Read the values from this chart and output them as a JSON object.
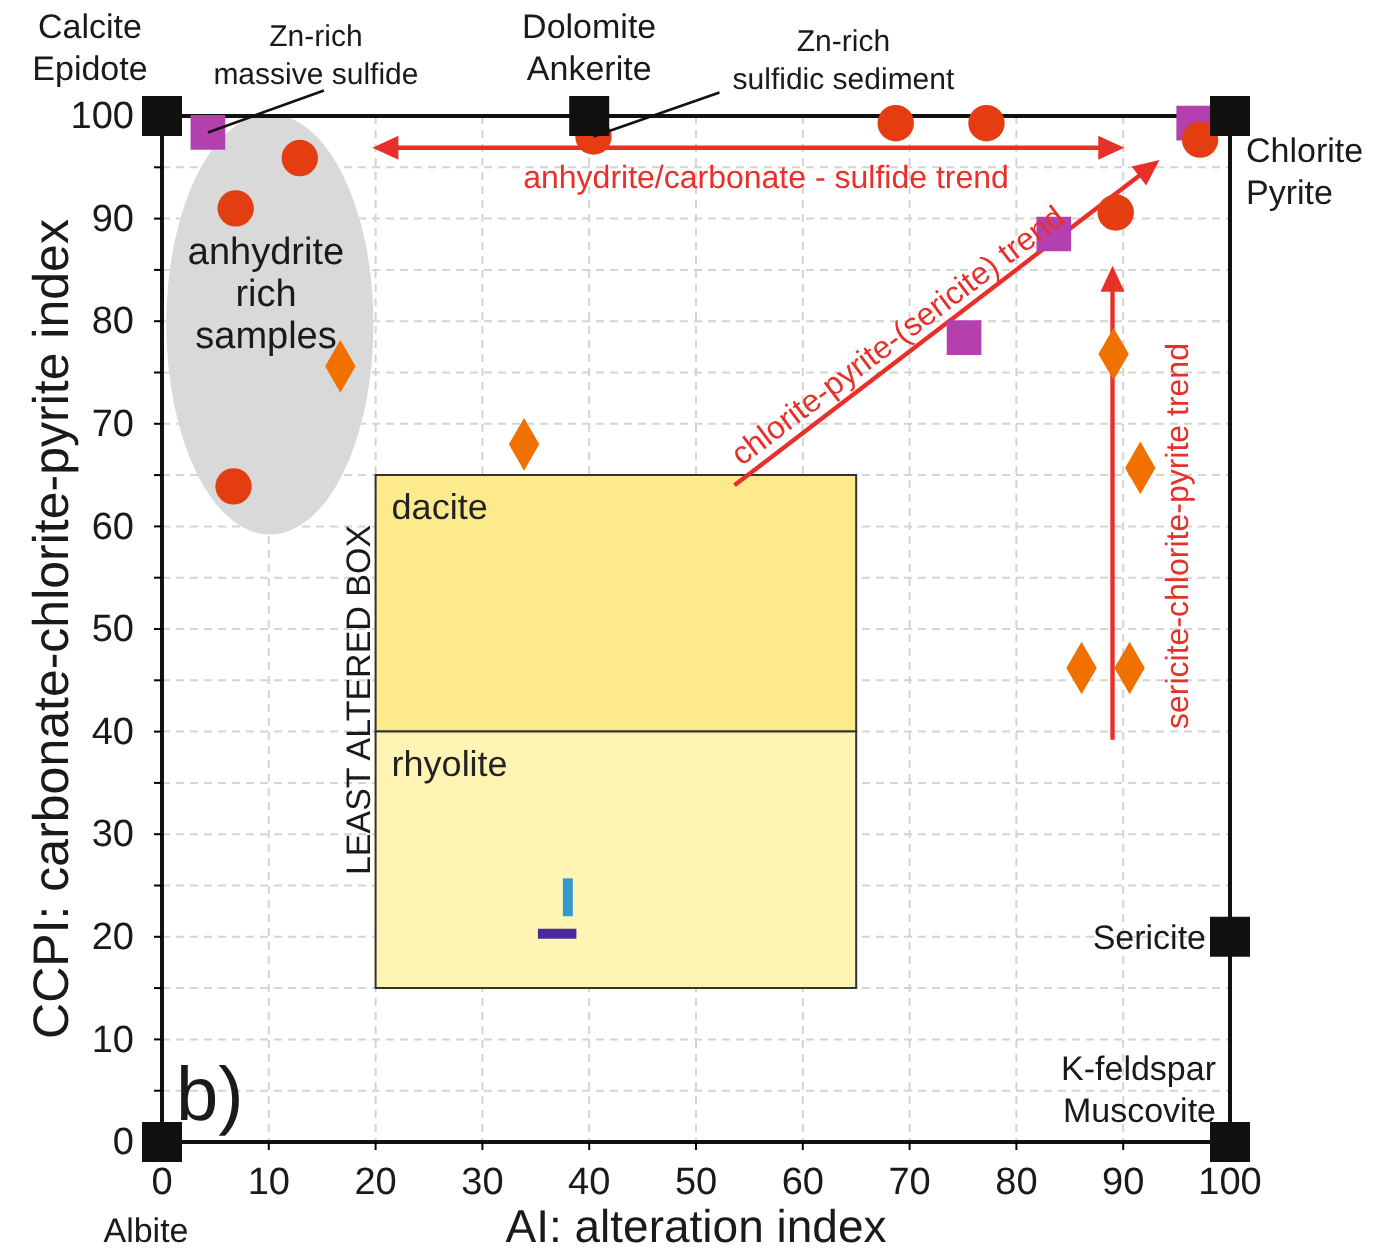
{
  "chart_data": {
    "type": "scatter",
    "xlabel": "AI: alteration index",
    "ylabel": "CCPI: carbonate-chlorite-pyrite index",
    "xlim": [
      0,
      100
    ],
    "ylim": [
      0,
      100
    ],
    "xticks": [
      0,
      10,
      20,
      30,
      40,
      50,
      60,
      70,
      80,
      90,
      100
    ],
    "yticks": [
      0,
      {
        "value": 5,
        "label": null
      },
      10,
      {
        "value": 15,
        "label": null
      },
      20,
      {
        "value": 25,
        "label": null
      },
      30,
      {
        "value": 35,
        "label": null
      },
      40,
      {
        "value": 45,
        "label": null
      },
      50,
      {
        "value": 55,
        "label": null
      },
      60,
      {
        "value": 65,
        "label": null
      },
      70,
      {
        "value": 75,
        "label": null
      },
      80,
      {
        "value": 85,
        "label": null
      },
      90,
      {
        "value": 95,
        "label": null
      },
      100
    ],
    "grid": true,
    "series": [
      {
        "type": "area",
        "name": "dacite",
        "color": "#fdea8c",
        "x": [
          20,
          20,
          65,
          65
        ],
        "values": [
          40,
          65,
          65,
          40
        ]
      },
      {
        "type": "area",
        "name": "rhyolite",
        "color": "#fff4b3",
        "x": [
          20,
          20,
          65,
          65
        ],
        "values": [
          15,
          40,
          40,
          15
        ]
      },
      {
        "type": "line",
        "color": "#3399cc",
        "x": [
          38,
          38
        ],
        "values": [
          22,
          25.7
        ]
      },
      {
        "type": "line",
        "color": "#4b2a9a",
        "x": [
          35.2,
          38.8
        ],
        "values": [
          20.3,
          20.3
        ]
      },
      {
        "marker": "square",
        "color": "#b440b0",
        "x": [
          4.3,
          83.5,
          75.1,
          96.6
        ],
        "values": [
          98.4,
          88.5,
          78.4,
          99.3
        ]
      },
      {
        "marker": "circle",
        "color": "#e43d12",
        "x": [
          6.9,
          12.9,
          6.7,
          40.4,
          68.7,
          77.2,
          97.2,
          89.3
        ],
        "values": [
          91,
          95.9,
          63.9,
          98,
          99.3,
          99.3,
          97.7,
          90.6
        ]
      },
      {
        "marker": "diamond",
        "color": "#f07000",
        "x": [
          16.7,
          33.9,
          89.1,
          91.6,
          86.1,
          90.6
        ],
        "values": [
          75.6,
          68,
          76.8,
          65.7,
          46.2,
          46.2
        ]
      },
      {
        "marker": "square",
        "color": "#111111",
        "x": [
          0,
          40,
          100,
          100,
          100,
          0
        ],
        "values": [
          100,
          100,
          100,
          20,
          0,
          0
        ],
        "value_labels": [
          "Calcite\nEpidote",
          "Dolomite\nAnkerite",
          "Chlorite\nPyrite",
          "Sericite",
          "K-feldspar\nMuscovite",
          "Albite"
        ]
      }
    ],
    "annotations": [
      {
        "text": "Zn-rich\nmassive sulfide",
        "x": 4.3,
        "y": 98.4
      },
      {
        "text": "Zn-rich\nsulfidic sediment",
        "x": 40.4,
        "y": 98
      },
      "anhydrite/carbonate - sulfide trend",
      "chlorite-pyrite-(sericite) trend",
      "sericite-chlorite-pyrite trend",
      "anhydrite\nrich\nsamples",
      "LEAST ALTERED BOX",
      "b)"
    ]
  }
}
